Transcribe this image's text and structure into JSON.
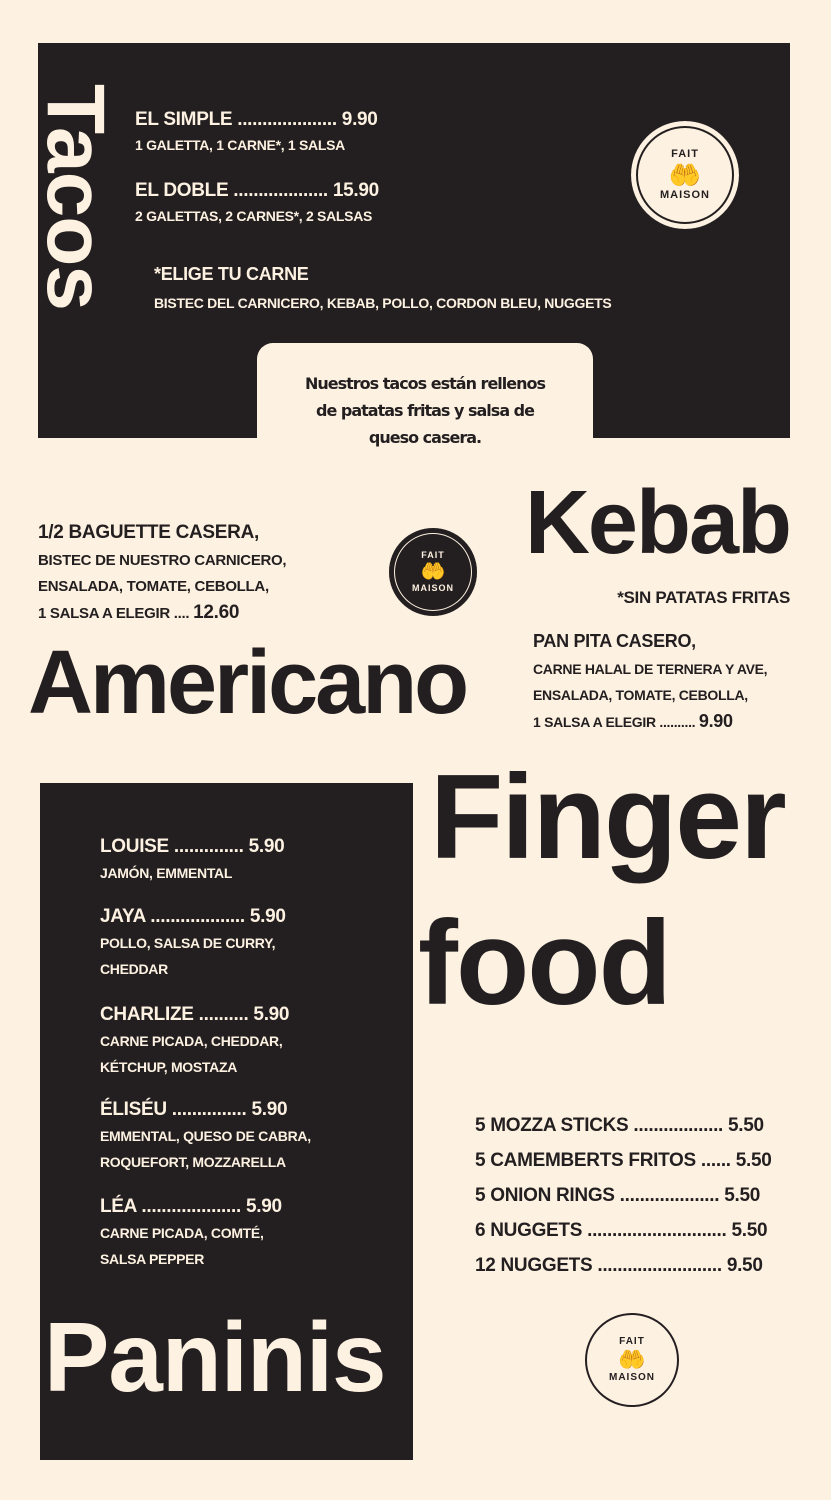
{
  "colors": {
    "background": "#fdf1e1",
    "dark": "#231f20"
  },
  "badge": {
    "top": "FAIT",
    "bottom": "MAISON",
    "icon": "hands-heart-icon"
  },
  "tacos": {
    "title": "Tacos",
    "items": [
      {
        "name": "EL SIMPLE",
        "dots": " ....................",
        "price": "9.90",
        "desc": "1 GALETTA, 1 CARNE*, 1 SALSA"
      },
      {
        "name": "EL DOBLE",
        "dots": " ...................",
        "price": "15.90",
        "desc": "2 GALETTAS, 2 CARNES*, 2 SALSAS"
      }
    ],
    "choose_title": "*ELIGE TU CARNE",
    "choose_list": "BISTEC DEL CARNICERO, KEBAB, POLLO, CORDON BLEU, NUGGETS",
    "note": [
      "Nuestros tacos están rellenos",
      "de patatas fritas y salsa de",
      "queso casera."
    ]
  },
  "americano": {
    "title": "Americano",
    "lines": [
      "1/2 BAGUETTE CASERA,",
      "BISTEC DE NUESTRO CARNICERO,",
      "ENSALADA, TOMATE, CEBOLLA,"
    ],
    "last_line": "1 SALSA A ELEGIR .... ",
    "price": "12.60"
  },
  "kebab": {
    "title": "Kebab",
    "note": "*SIN PATATAS FRITAS",
    "lines": [
      "PAN PITA CASERO,",
      "CARNE HALAL DE TERNERA Y AVE,",
      "ENSALADA, TOMATE, CEBOLLA,"
    ],
    "last_line": "1 SALSA A ELEGIR .......... ",
    "price": "9.90"
  },
  "paninis": {
    "title": "Paninis",
    "items": [
      {
        "name": "LOUISE",
        "dots": " ..............",
        "price": "5.90",
        "desc": [
          "JAMÓN, EMMENTAL"
        ]
      },
      {
        "name": "JAYA",
        "dots": " ...................",
        "price": "5.90",
        "desc": [
          "POLLO, SALSA DE CURRY,",
          "CHEDDAR"
        ]
      },
      {
        "name": "CHARLIZE",
        "dots": " ..........",
        "price": "5.90",
        "desc": [
          "CARNE PICADA, CHEDDAR,",
          "KÉTCHUP, MOSTAZA"
        ]
      },
      {
        "name": "ÉLISÉU",
        "dots": " ...............",
        "price": "5.90",
        "desc": [
          "EMMENTAL, QUESO DE CABRA,",
          "ROQUEFORT, MOZZARELLA"
        ]
      },
      {
        "name": "LÉA",
        "dots": " ....................",
        "price": "5.90",
        "desc": [
          "CARNE PICADA, COMTÉ,",
          "SALSA PEPPER"
        ]
      }
    ]
  },
  "finger_food": {
    "title_1": "Finger",
    "title_2": "food",
    "items": [
      {
        "name": "5 MOZZA STICKS",
        "dots": " ..................",
        "price": "5.50"
      },
      {
        "name": "5 CAMEMBERTS FRITOS",
        "dots": " ......",
        "price": "5.50"
      },
      {
        "name": "5 ONION RINGS",
        "dots": " ....................",
        "price": "5.50"
      },
      {
        "name": "6 NUGGETS",
        "dots": " ............................",
        "price": "5.50"
      },
      {
        "name": "12 NUGGETS",
        "dots": " .........................",
        "price": "9.50"
      }
    ]
  }
}
